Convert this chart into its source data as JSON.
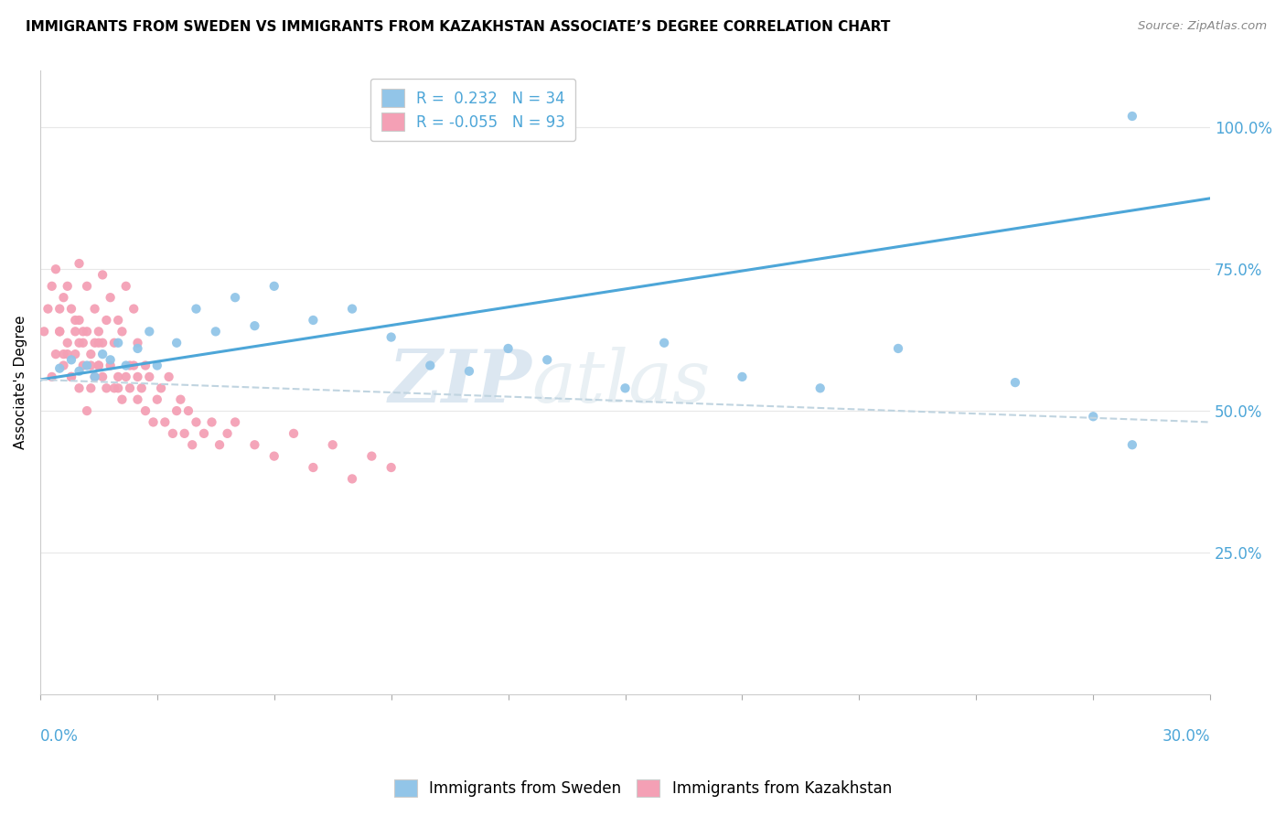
{
  "title": "IMMIGRANTS FROM SWEDEN VS IMMIGRANTS FROM KAZAKHSTAN ASSOCIATE’S DEGREE CORRELATION CHART",
  "source": "Source: ZipAtlas.com",
  "ylabel": "Associate's Degree",
  "xlim": [
    0.0,
    0.3
  ],
  "ylim": [
    0.0,
    1.1
  ],
  "y_tick_values": [
    0.25,
    0.5,
    0.75,
    1.0
  ],
  "legend_r_sweden": "R =  0.232",
  "legend_n_sweden": "N = 34",
  "legend_r_kaz": "R = -0.055",
  "legend_n_kaz": "N = 93",
  "sweden_color": "#92c5e8",
  "kaz_color": "#f4a0b5",
  "sweden_line_color": "#4da6d8",
  "kaz_line_color": "#c0d4e0",
  "watermark_zip": "ZIP",
  "watermark_atlas": "atlas",
  "sweden_line_x0": 0.0,
  "sweden_line_y0": 0.555,
  "sweden_line_x1": 0.3,
  "sweden_line_y1": 0.875,
  "kaz_line_x0": 0.0,
  "kaz_line_y0": 0.555,
  "kaz_line_x1": 0.3,
  "kaz_line_y1": 0.48,
  "sweden_scatter_x": [
    0.005,
    0.008,
    0.01,
    0.012,
    0.014,
    0.016,
    0.018,
    0.02,
    0.022,
    0.025,
    0.028,
    0.03,
    0.035,
    0.04,
    0.045,
    0.05,
    0.055,
    0.06,
    0.07,
    0.08,
    0.09,
    0.1,
    0.11,
    0.12,
    0.13,
    0.15,
    0.16,
    0.18,
    0.2,
    0.22,
    0.25,
    0.27,
    0.28,
    0.28
  ],
  "sweden_scatter_y": [
    0.575,
    0.59,
    0.57,
    0.58,
    0.56,
    0.6,
    0.59,
    0.62,
    0.58,
    0.61,
    0.64,
    0.58,
    0.62,
    0.68,
    0.64,
    0.7,
    0.65,
    0.72,
    0.66,
    0.68,
    0.63,
    0.58,
    0.57,
    0.61,
    0.59,
    0.54,
    0.62,
    0.56,
    0.54,
    0.61,
    0.55,
    0.49,
    0.44,
    1.02
  ],
  "kaz_scatter_x": [
    0.001,
    0.002,
    0.003,
    0.004,
    0.004,
    0.005,
    0.005,
    0.006,
    0.006,
    0.007,
    0.007,
    0.008,
    0.008,
    0.009,
    0.009,
    0.01,
    0.01,
    0.011,
    0.011,
    0.012,
    0.012,
    0.013,
    0.013,
    0.014,
    0.014,
    0.015,
    0.015,
    0.016,
    0.016,
    0.017,
    0.018,
    0.019,
    0.02,
    0.021,
    0.022,
    0.023,
    0.024,
    0.025,
    0.026,
    0.027,
    0.028,
    0.029,
    0.03,
    0.031,
    0.032,
    0.033,
    0.034,
    0.035,
    0.036,
    0.037,
    0.038,
    0.039,
    0.04,
    0.042,
    0.044,
    0.046,
    0.048,
    0.05,
    0.055,
    0.06,
    0.065,
    0.07,
    0.075,
    0.08,
    0.085,
    0.09,
    0.01,
    0.012,
    0.014,
    0.016,
    0.018,
    0.02,
    0.022,
    0.024,
    0.005,
    0.007,
    0.009,
    0.011,
    0.013,
    0.015,
    0.017,
    0.019,
    0.021,
    0.023,
    0.025,
    0.027,
    0.003,
    0.006,
    0.008,
    0.01,
    0.015,
    0.02,
    0.025
  ],
  "kaz_scatter_y": [
    0.64,
    0.68,
    0.72,
    0.6,
    0.75,
    0.68,
    0.64,
    0.7,
    0.58,
    0.72,
    0.62,
    0.68,
    0.56,
    0.64,
    0.6,
    0.66,
    0.54,
    0.62,
    0.58,
    0.64,
    0.5,
    0.58,
    0.54,
    0.56,
    0.62,
    0.64,
    0.58,
    0.56,
    0.62,
    0.54,
    0.58,
    0.54,
    0.56,
    0.52,
    0.56,
    0.54,
    0.58,
    0.52,
    0.54,
    0.5,
    0.56,
    0.48,
    0.52,
    0.54,
    0.48,
    0.56,
    0.46,
    0.5,
    0.52,
    0.46,
    0.5,
    0.44,
    0.48,
    0.46,
    0.48,
    0.44,
    0.46,
    0.48,
    0.44,
    0.42,
    0.46,
    0.4,
    0.44,
    0.38,
    0.42,
    0.4,
    0.76,
    0.72,
    0.68,
    0.74,
    0.7,
    0.66,
    0.72,
    0.68,
    0.64,
    0.6,
    0.66,
    0.64,
    0.6,
    0.62,
    0.66,
    0.62,
    0.64,
    0.58,
    0.62,
    0.58,
    0.56,
    0.6,
    0.56,
    0.62,
    0.58,
    0.54,
    0.56
  ]
}
